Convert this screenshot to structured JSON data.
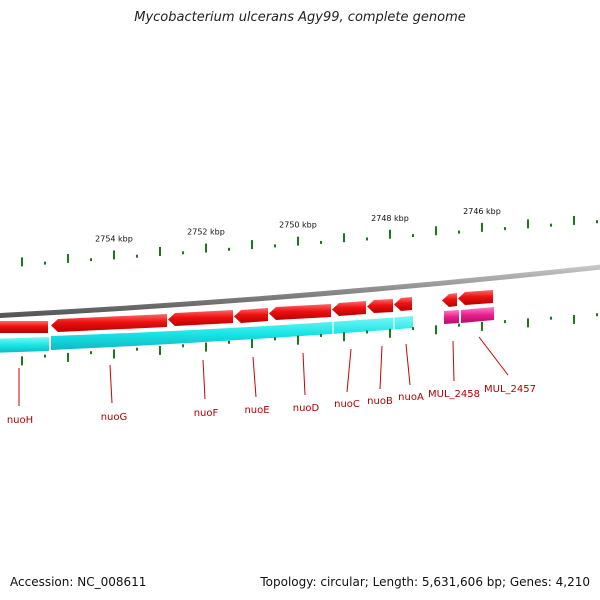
{
  "title": "Mycobacterium ulcerans Agy99, complete genome",
  "footer": {
    "accession": "Accession: NC_008611",
    "summary": "Topology: circular; Length: 5,631,606 bp; Genes: 4,210"
  },
  "colors": {
    "backbone": "#888888",
    "forward_gene": "#ee1111",
    "reverse_cds": "#19e6e6",
    "reverse_hypothetical": "#e91e8c",
    "tick": "#1a7a1a",
    "gene_label": "#b00000"
  },
  "scale": {
    "unit": "kbp",
    "labeled_ticks": [
      {
        "kbp": 2754,
        "label": "2754 kbp"
      },
      {
        "kbp": 2752,
        "label": "2752 kbp"
      },
      {
        "kbp": 2750,
        "label": "2750 kbp"
      },
      {
        "kbp": 2748,
        "label": "2748 kbp"
      },
      {
        "kbp": 2746,
        "label": "2746 kbp"
      }
    ]
  },
  "genes": [
    {
      "name": "nuoH"
    },
    {
      "name": "nuoG"
    },
    {
      "name": "nuoF"
    },
    {
      "name": "nuoE"
    },
    {
      "name": "nuoD"
    },
    {
      "name": "nuoC"
    },
    {
      "name": "nuoB"
    },
    {
      "name": "nuoA"
    },
    {
      "name": "MUL_2458"
    },
    {
      "name": "MUL_2457"
    }
  ]
}
